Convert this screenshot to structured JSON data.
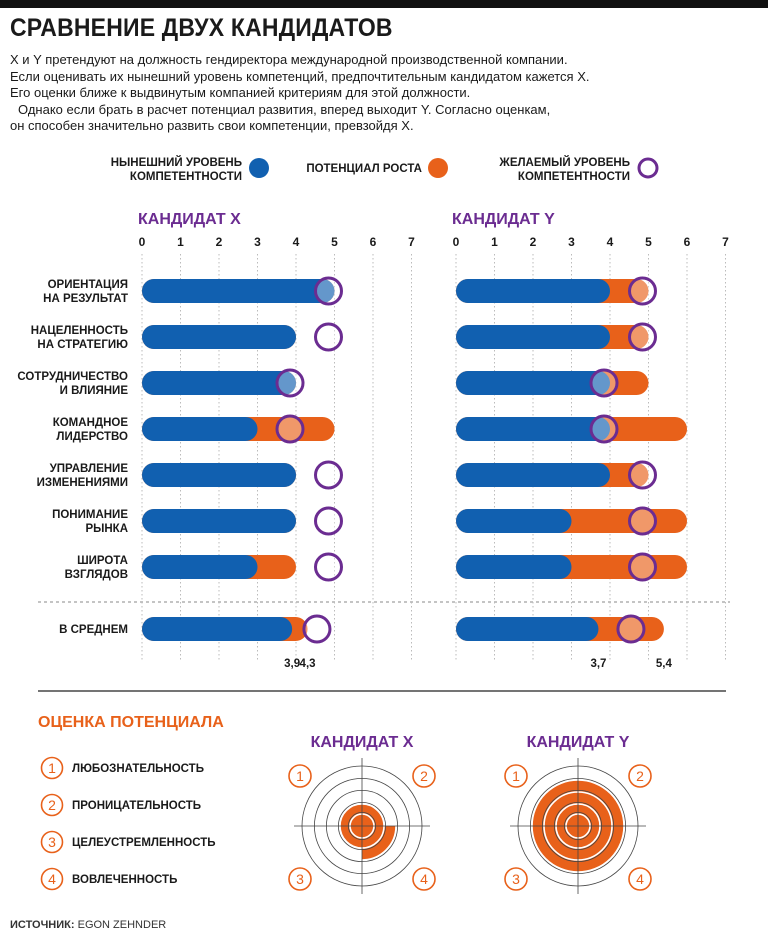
{
  "title": "СРАВНЕНИЕ ДВУХ КАНДИДАТОВ",
  "intro": [
    "X и Y претендуют на должность гендиректора международной производственной компании.",
    "Если оценивать их нынешний уровень компетенций, предпочтительным кандидатом кажется X.",
    "Его оценки ближе к выдвинутым компанией критериям для этой должности.",
    "Однако если брать в расчет потенциал развития, вперед выходит Y. Согласно оценкам,",
    "он способен значительно развить свои компетенции, превзойдя X."
  ],
  "legend": [
    {
      "label_lines": [
        "НЫНЕШНИЙ УРОВЕНЬ",
        "КОМПЕТЕНТНОСТИ"
      ],
      "kind": "current",
      "color": "#1160b0"
    },
    {
      "label_lines": [
        "ПОТЕНЦИАЛ РОСТА"
      ],
      "kind": "growth",
      "color": "#e8611a"
    },
    {
      "label_lines": [
        "ЖЕЛАЕМЫЙ УРОВЕНЬ",
        "КОМПЕТЕНТНОСТИ"
      ],
      "kind": "desired",
      "color": "#6b2c91"
    }
  ],
  "colors": {
    "current": "#1160b0",
    "growth": "#e8611a",
    "desired": "#6b2c91",
    "axis": "#1a1a1a"
  },
  "chart_data": {
    "type": "bar",
    "orientation": "horizontal",
    "stacked": true,
    "x_ticks": [
      0,
      1,
      2,
      3,
      4,
      5,
      6,
      7
    ],
    "xlim": [
      0,
      7
    ],
    "categories": [
      [
        "ОРИЕНТАЦИЯ",
        "НА РЕЗУЛЬТАТ"
      ],
      [
        "НАЦЕЛЕННОСТЬ",
        "НА СТРАТЕГИЮ"
      ],
      [
        "СОТРУДНИЧЕСТВО",
        "И ВЛИЯНИЕ"
      ],
      [
        "КОМАНДНОЕ",
        "ЛИДЕРСТВО"
      ],
      [
        "УПРАВЛЕНИЕ",
        "ИЗМЕНЕНИЯМИ"
      ],
      [
        "ПОНИМАНИЕ",
        "РЫНКА"
      ],
      [
        "ШИРОТА",
        "ВЗГЛЯДОВ"
      ]
    ],
    "average_label": "В СРЕДНЕМ",
    "candidates": [
      {
        "name": "КАНДИДАТ X",
        "current": [
          5.0,
          4.0,
          4.0,
          3.0,
          4.0,
          4.0,
          3.0
        ],
        "potential": [
          5.0,
          4.0,
          4.0,
          5.0,
          4.0,
          4.0,
          4.0
        ],
        "desired": [
          5.0,
          5.0,
          4.0,
          4.0,
          5.0,
          5.0,
          5.0
        ],
        "average": {
          "current": 3.9,
          "potential": 4.3,
          "desired": 4.7,
          "current_label": "3,9",
          "potential_label": "4,3"
        }
      },
      {
        "name": "КАНДИДАТ Y",
        "current": [
          4.0,
          4.0,
          4.0,
          4.0,
          4.0,
          3.0,
          3.0
        ],
        "potential": [
          5.0,
          5.0,
          5.0,
          6.0,
          5.0,
          6.0,
          6.0
        ],
        "desired": [
          5.0,
          5.0,
          4.0,
          4.0,
          5.0,
          5.0,
          5.0
        ],
        "average": {
          "current": 3.7,
          "potential": 5.4,
          "desired": 4.7,
          "current_label": "3,7",
          "potential_label": "5,4"
        }
      }
    ]
  },
  "potential": {
    "title": "ОЦЕНКА ПОТЕНЦИАЛА",
    "items": [
      {
        "num": "1",
        "label": "ЛЮБОЗНАТЕЛЬНОСТЬ"
      },
      {
        "num": "2",
        "label": "ПРОНИЦАТЕЛЬНОСТЬ"
      },
      {
        "num": "3",
        "label": "ЦЕЛЕУСТРЕМЛЕННОСТЬ"
      },
      {
        "num": "4",
        "label": "ВОВЛЕЧЕННОСТЬ"
      }
    ],
    "max_level": 4,
    "targets": [
      {
        "name": "КАНДИДАТ X",
        "levels": [
          2,
          2,
          2,
          3
        ]
      },
      {
        "name": "КАНДИДАТ Y",
        "levels": [
          4,
          4,
          4,
          4
        ]
      }
    ]
  },
  "source": {
    "label": "ИСТОЧНИК:",
    "text": "EGON ZEHNDER"
  }
}
